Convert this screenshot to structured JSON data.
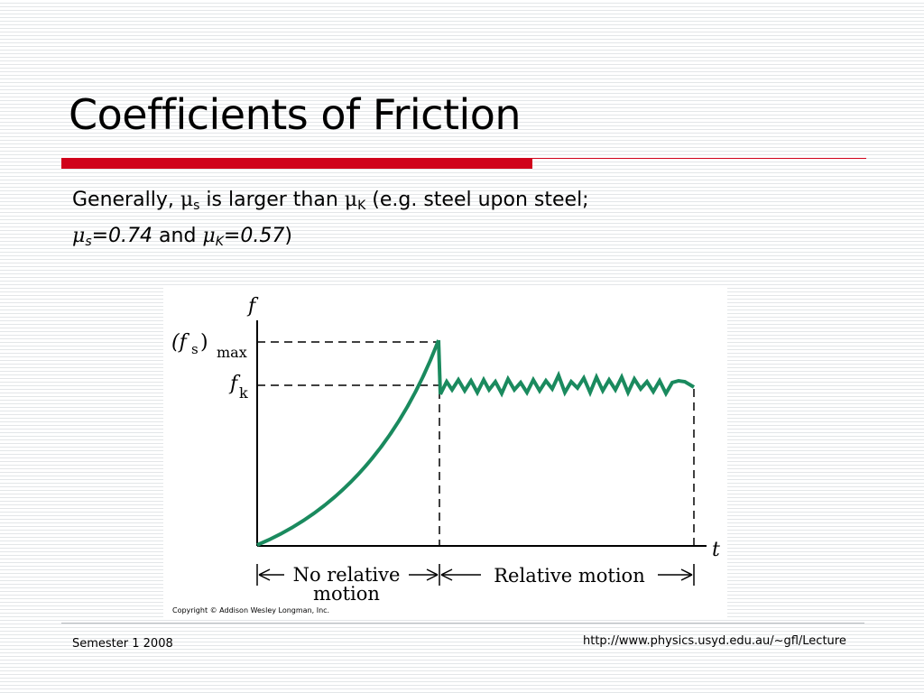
{
  "slide": {
    "title": "Coefficients of Friction",
    "body": {
      "line1_prefix": "Generally, ",
      "mu": "μ",
      "sub_s": "s",
      "line1_mid": " is larger than ",
      "sub_k": "K",
      "line1_suffix": " (e.g. steel upon steel;",
      "mu_s_value": "=0.74",
      "and": " and ",
      "mu_k_value": "=0.57",
      "close": ")"
    },
    "footer": {
      "left": "Semester 1 2008",
      "right": "http://www.physics.usyd.edu.au/~gfl/Lecture"
    }
  },
  "figure": {
    "axis_y_label": "f",
    "axis_x_label": "t",
    "fs_max_label_f": "(f",
    "fs_max_label_s": "s",
    "fs_max_label_close": ")",
    "fs_max_label_max": "max",
    "fk_label_f": "f",
    "fk_label_k": "k",
    "region_left_line1": "No relative",
    "region_left_line2": "motion",
    "region_right": "Relative motion",
    "copyright": "Copyright © Addison Wesley Longman, Inc.",
    "curve_color": "#1a8a5e"
  }
}
